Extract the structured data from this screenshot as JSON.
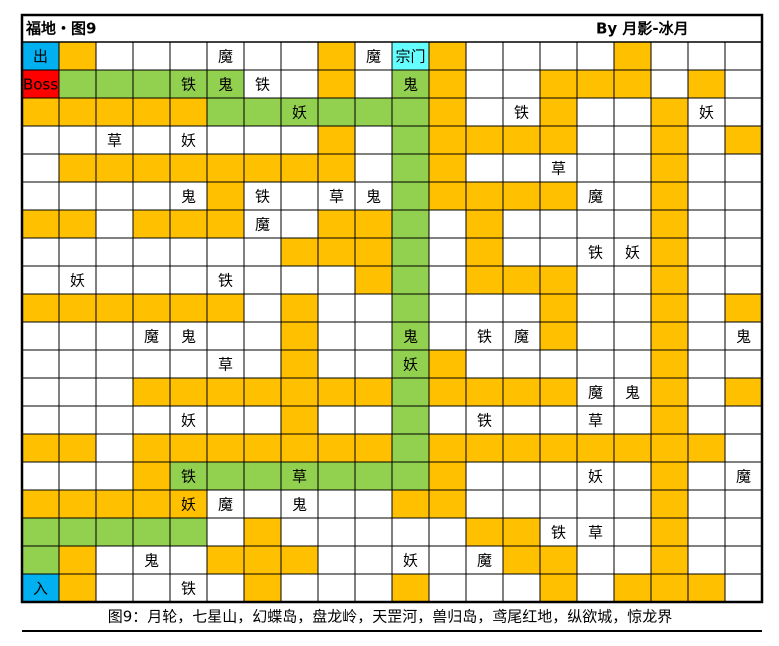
{
  "header": {
    "title": "福地・图9",
    "author": "By 月影-冰月"
  },
  "caption": "图9：月轮，七星山，幻蝶岛，盘龙岭，天罡河，兽归岛，鸢尾红地，纵欲城，惊龙界",
  "palette": {
    "W": "#ffffff",
    "O": "#ffc000",
    "G": "#92d050",
    "B": "#00b0f0",
    "R": "#ff0000",
    "C": "#66ffff"
  },
  "grid": {
    "rows": [
      {
        "fill": "BOWWWWWWOWCOWWWWOWWW",
        "labels": {
          "0": "出",
          "5": "魔",
          "9": "魔",
          "10": "宗门"
        }
      },
      {
        "fill": "RGGGGGWWOWGOWWOOOWOW",
        "labels": {
          "0": "Boss",
          "4": "铁",
          "5": "鬼",
          "6": "铁",
          "10": "鬼"
        }
      },
      {
        "fill": "OOOOOGGGGGGOWWOWWOWW",
        "labels": {
          "7": "妖",
          "13": "铁",
          "18": "妖"
        }
      },
      {
        "fill": "WWWWWWWWOWGOOOOWWOWO",
        "labels": {
          "2": "草",
          "4": "妖"
        }
      },
      {
        "fill": "WOOOOOOOOWGOWWWWWOWW",
        "labels": {
          "14": "草"
        }
      },
      {
        "fill": "WWWWWOWWWWGOOOOWWOWW",
        "labels": {
          "4": "鬼",
          "6": "铁",
          "8": "草",
          "9": "鬼",
          "15": "魔"
        }
      },
      {
        "fill": "OOWOOOWWOOGWOWWWWOWW",
        "labels": {
          "6": "魔"
        }
      },
      {
        "fill": "WWWWWWWOOOGWOWWWWOWW",
        "labels": {
          "15": "铁",
          "16": "妖"
        }
      },
      {
        "fill": "WWWWWWWWWOGWOOOWWOWW",
        "labels": {
          "1": "妖",
          "5": "铁"
        }
      },
      {
        "fill": "OOOOOOWOWWGWWWOWWOWO",
        "labels": {}
      },
      {
        "fill": "WWWWWWWOWWGWWWOWWOWW",
        "labels": {
          "3": "魔",
          "4": "鬼",
          "10": "鬼",
          "12": "铁",
          "13": "魔",
          "19": "鬼"
        }
      },
      {
        "fill": "WWWWWWWOWWGOWWWWWOWW",
        "labels": {
          "5": "草",
          "10": "妖"
        }
      },
      {
        "fill": "WWWOOOOOOOGOOOOWWOWO",
        "labels": {
          "15": "魔",
          "16": "鬼"
        }
      },
      {
        "fill": "WWWWWWWOWWGWWWWWWOWW",
        "labels": {
          "4": "妖",
          "12": "铁",
          "15": "草"
        }
      },
      {
        "fill": "OOWOOOOOOOGOOOOOOOOW",
        "labels": {}
      },
      {
        "fill": "WWWOGGGGGGGOWWWWWOWW",
        "labels": {
          "4": "铁",
          "7": "草",
          "15": "妖",
          "19": "魔"
        }
      },
      {
        "fill": "OOOOOWWWWWOOWWWWWOWW",
        "labels": {
          "4": "妖",
          "5": "魔",
          "7": "鬼"
        }
      },
      {
        "fill": "GGGGGWOWWWWWOOWWWOWW",
        "labels": {
          "14": "铁",
          "15": "草"
        }
      },
      {
        "fill": "GOWWWOOOWWWWWOOWWOWW",
        "labels": {
          "3": "鬼",
          "10": "妖",
          "12": "魔"
        }
      },
      {
        "fill": "BOWWWWOWWWOWWWOWOOOW",
        "labels": {
          "0": "入",
          "4": "铁"
        }
      }
    ]
  }
}
